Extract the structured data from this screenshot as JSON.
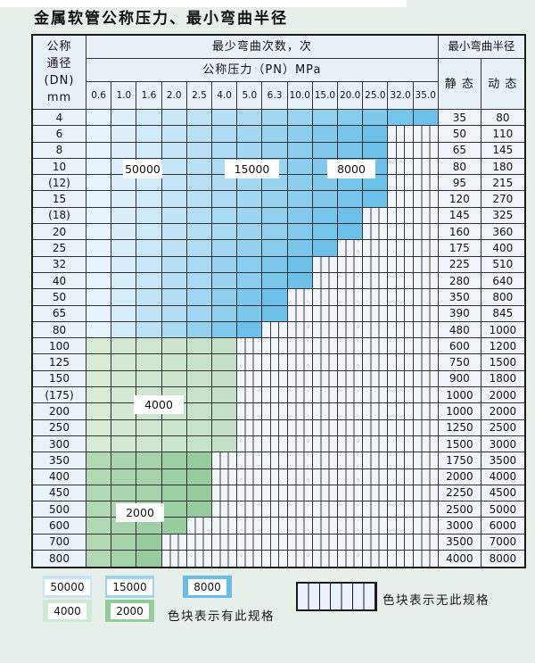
{
  "title": "金属软管公称压力、最小弯曲半径",
  "table": {
    "dn_header_lines": [
      "公称",
      "通径",
      "(DN)",
      "mm"
    ],
    "cycles_header": "最少弯曲次数，次",
    "pressure_header": "公称压力（PN）MPa",
    "radius_header": "最小弯曲半径",
    "static_header": "静 态",
    "dynamic_header": "动 态",
    "pressure_columns": [
      "0.6",
      "1.0",
      "1.6",
      "2.0",
      "2.5",
      "4.0",
      "5.0",
      "6.3",
      "10.0",
      "15.0",
      "20.0",
      "25.0",
      "32.0",
      "35.0"
    ],
    "rows": [
      {
        "dn": "4",
        "colored": 14,
        "tone": "blue",
        "static": "35",
        "dynamic": "80"
      },
      {
        "dn": "6",
        "colored": 12,
        "tone": "blue",
        "static": "50",
        "dynamic": "110"
      },
      {
        "dn": "8",
        "colored": 12,
        "tone": "blue",
        "static": "65",
        "dynamic": "145"
      },
      {
        "dn": "10",
        "colored": 12,
        "tone": "blue",
        "static": "80",
        "dynamic": "180"
      },
      {
        "dn": "(12)",
        "colored": 12,
        "tone": "blue",
        "static": "95",
        "dynamic": "215"
      },
      {
        "dn": "15",
        "colored": 12,
        "tone": "blue",
        "static": "120",
        "dynamic": "270"
      },
      {
        "dn": "(18)",
        "colored": 11,
        "tone": "blue",
        "static": "145",
        "dynamic": "325"
      },
      {
        "dn": "20",
        "colored": 11,
        "tone": "blue",
        "static": "160",
        "dynamic": "360"
      },
      {
        "dn": "25",
        "colored": 10,
        "tone": "blue",
        "static": "175",
        "dynamic": "400"
      },
      {
        "dn": "32",
        "colored": 9,
        "tone": "blue",
        "static": "225",
        "dynamic": "510"
      },
      {
        "dn": "40",
        "colored": 9,
        "tone": "blue",
        "static": "280",
        "dynamic": "640"
      },
      {
        "dn": "50",
        "colored": 8,
        "tone": "blue",
        "static": "350",
        "dynamic": "800"
      },
      {
        "dn": "65",
        "colored": 8,
        "tone": "blue",
        "static": "390",
        "dynamic": "845"
      },
      {
        "dn": "80",
        "colored": 7,
        "tone": "blue",
        "static": "480",
        "dynamic": "1000"
      },
      {
        "dn": "100",
        "colored": 6,
        "tone": "green-4000",
        "static": "600",
        "dynamic": "1200"
      },
      {
        "dn": "125",
        "colored": 6,
        "tone": "green-4000",
        "static": "750",
        "dynamic": "1500"
      },
      {
        "dn": "150",
        "colored": 6,
        "tone": "green-4000",
        "static": "900",
        "dynamic": "1800"
      },
      {
        "dn": "(175)",
        "colored": 6,
        "tone": "green-4000",
        "static": "1000",
        "dynamic": "2000"
      },
      {
        "dn": "200",
        "colored": 6,
        "tone": "green-4000",
        "static": "1000",
        "dynamic": "2000"
      },
      {
        "dn": "250",
        "colored": 6,
        "tone": "green-4000",
        "static": "1250",
        "dynamic": "2500"
      },
      {
        "dn": "300",
        "colored": 6,
        "tone": "green-4000",
        "static": "1500",
        "dynamic": "3000"
      },
      {
        "dn": "350",
        "colored": 5,
        "tone": "green-2000",
        "static": "1750",
        "dynamic": "3500"
      },
      {
        "dn": "400",
        "colored": 5,
        "tone": "green-2000",
        "static": "2000",
        "dynamic": "4000"
      },
      {
        "dn": "450",
        "colored": 5,
        "tone": "green-2000",
        "static": "2250",
        "dynamic": "4500"
      },
      {
        "dn": "500",
        "colored": 5,
        "tone": "green-2000",
        "static": "2500",
        "dynamic": "5000"
      },
      {
        "dn": "600",
        "colored": 4,
        "tone": "green-2000",
        "static": "3000",
        "dynamic": "6000"
      },
      {
        "dn": "700",
        "colored": 3,
        "tone": "green-2000",
        "static": "3500",
        "dynamic": "7000"
      },
      {
        "dn": "800",
        "colored": 3,
        "tone": "green-2000",
        "static": "4000",
        "dynamic": "8000"
      }
    ],
    "overlay_labels": [
      "50000",
      "15000",
      "8000",
      "4000",
      "2000"
    ]
  },
  "colors": {
    "blue_light": "#e6f3fc",
    "blue_dark": "#6cc0e9",
    "green4000_light": "#d7ebd8",
    "green4000_dark": "#c4e1c8",
    "green2000_light": "#b0d9b4",
    "green2000_dark": "#97cc9e",
    "hatch_bg": "#f0f5fa",
    "page_bg": "#e6f0e9"
  },
  "legend": {
    "swatches": [
      {
        "label": "50000",
        "color": "#c9e4f6"
      },
      {
        "label": "15000",
        "color": "#9dd2f0"
      },
      {
        "label": "8000",
        "color": "#68bde7"
      },
      {
        "label": "4000",
        "color": "#cfe8d1"
      },
      {
        "label": "2000",
        "color": "#92cb9a"
      }
    ],
    "has_spec_text": "色块表示有此规格",
    "no_spec_text": "色块表示无此规格"
  }
}
